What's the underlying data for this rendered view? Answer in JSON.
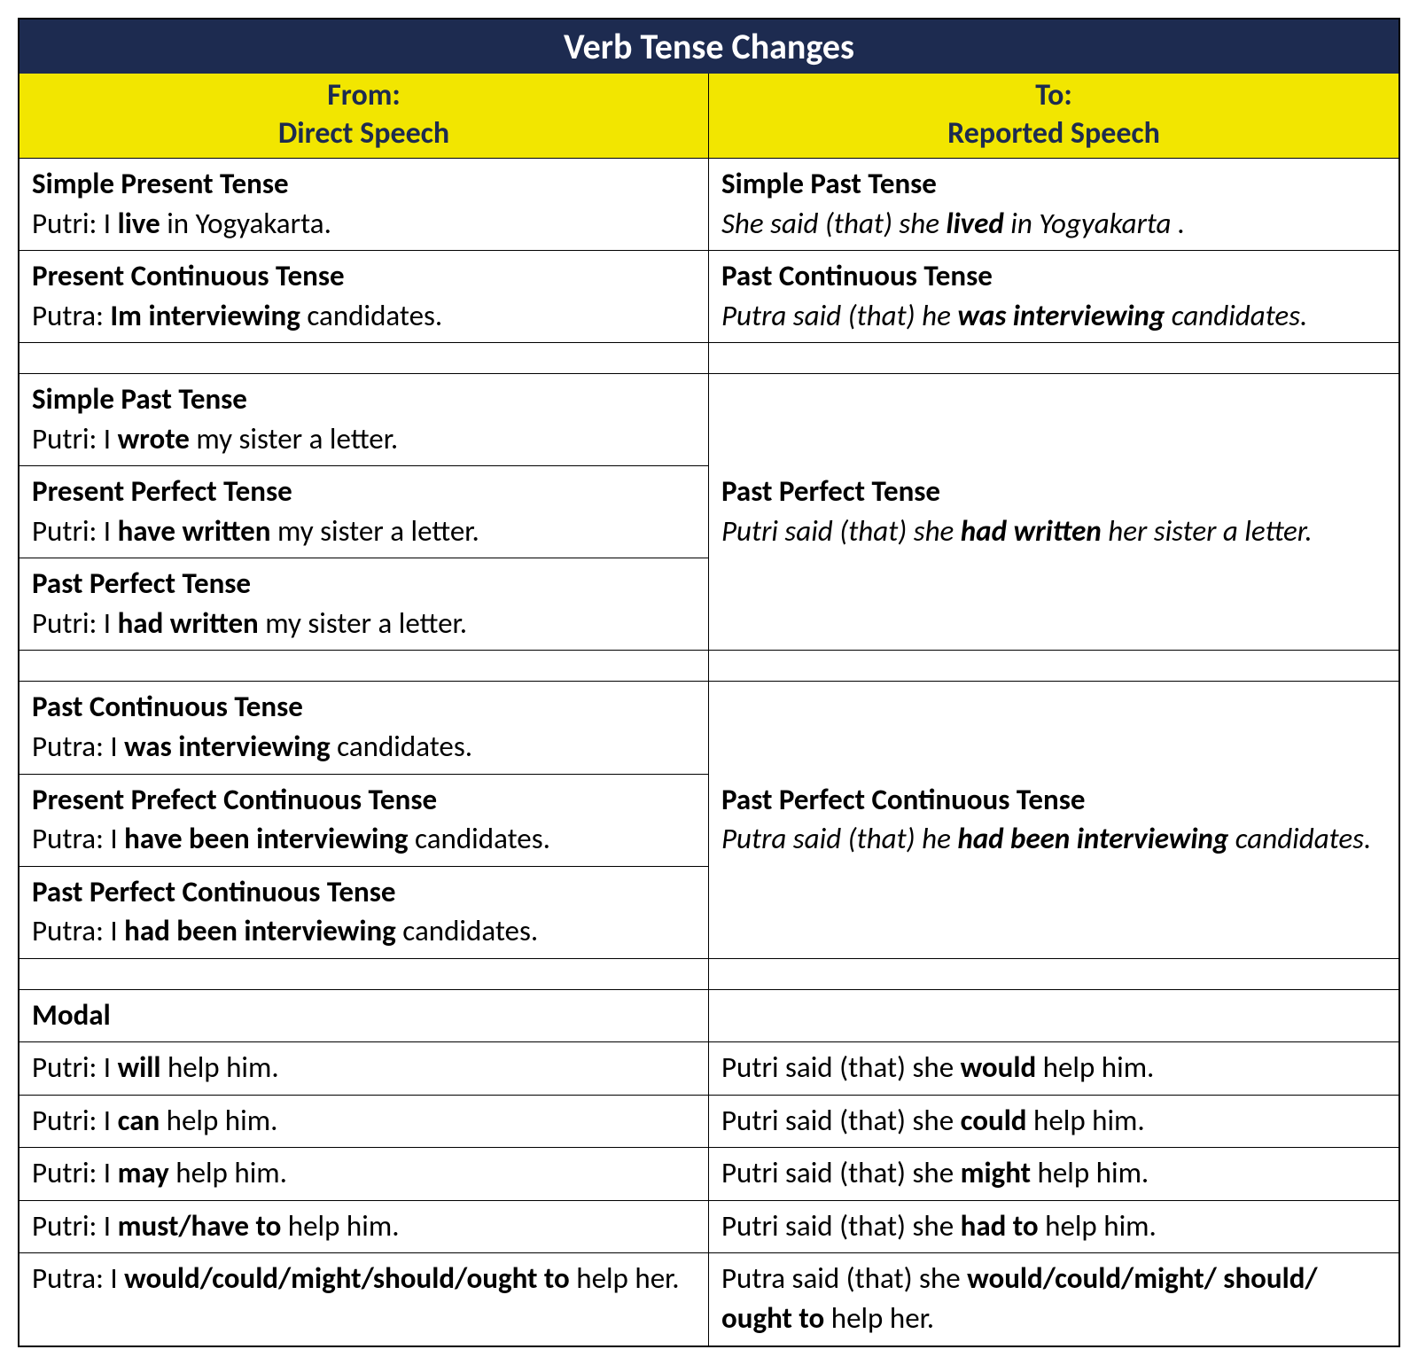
{
  "title": "Verb Tense Changes",
  "header": {
    "from_label": "From:",
    "from_sub": "Direct Speech",
    "to_label": "To:",
    "to_sub": "Reported Speech"
  },
  "colors": {
    "title_bg": "#1d2b50",
    "title_fg": "#ffffff",
    "header_bg": "#f2e600",
    "header_fg": "#1d2b50",
    "border": "#000000",
    "text": "#000000",
    "bg": "#ffffff"
  },
  "row1": {
    "left_tense": "Simple Present Tense",
    "left_prefix": "Putri: I  ",
    "left_bold": "live",
    "left_suffix": " in Yogyakarta.",
    "right_tense": "Simple Past Tense",
    "right_prefix": "She said (that) she ",
    "right_bold": "lived",
    "right_suffix": " in Yogyakarta .",
    "right_italic": true
  },
  "row2": {
    "left_tense": "Present Continuous Tense",
    "left_prefix": "Putra:   ",
    "left_bold": "Im interviewing",
    "left_suffix": "  candidates.",
    "right_tense": "Past Continuous Tense",
    "right_prefix": "Putra said (that) he ",
    "right_bold": "was interviewing",
    "right_suffix": " candidates.",
    "right_italic": true
  },
  "group1": {
    "left_rows": [
      {
        "tense": "Simple Past Tense",
        "prefix": "Putri: I   ",
        "bold": "wrote",
        "suffix": " my sister a letter."
      },
      {
        "tense": "Present Perfect Tense",
        "prefix": "Putri: I   ",
        "bold": "have written",
        "suffix": " my sister a letter."
      },
      {
        "tense": "Past Perfect Tense",
        "prefix": "Putri: I   ",
        "bold": "had written",
        "suffix": " my sister a letter."
      }
    ],
    "right_tense": "Past Perfect Tense",
    "right_prefix": "Putri said (that) she ",
    "right_bold": "had written",
    "right_suffix": " her sister a letter.",
    "right_italic": true
  },
  "group2": {
    "left_rows": [
      {
        "tense": "Past Continuous Tense",
        "prefix": "Putra: I   ",
        "bold": "was interviewing",
        "suffix": " candidates."
      },
      {
        "tense": "Present Prefect Continuous Tense",
        "prefix": "Putra: I   ",
        "bold": "have been interviewing",
        "suffix": " candidates."
      },
      {
        "tense": "Past Perfect Continuous Tense",
        "prefix": "Putra: I   ",
        "bold": "had been interviewing",
        "suffix": " candidates."
      }
    ],
    "right_tense": "Past Perfect Continuous Tense",
    "right_prefix": "Putra said (that) he ",
    "right_bold": "had been interviewing",
    "right_suffix": " candidates.",
    "right_italic": true
  },
  "modal_header": "Modal",
  "modal_rows": [
    {
      "left_prefix": "Putri: I   ",
      "left_bold": "will",
      "left_suffix": " help him.",
      "right_prefix": "Putri said (that) she ",
      "right_bold": "would",
      "right_suffix": " help him."
    },
    {
      "left_prefix": "Putri: I   ",
      "left_bold": "can",
      "left_suffix": " help him.",
      "right_prefix": "Putri said (that) she ",
      "right_bold": "could",
      "right_suffix": " help him."
    },
    {
      "left_prefix": "Putri: I   ",
      "left_bold": "may",
      "left_suffix": " help him.",
      "right_prefix": "Putri said (that) she ",
      "right_bold": "might",
      "right_suffix": " help him."
    },
    {
      "left_prefix": "Putri: I   ",
      "left_bold": "must/have to",
      "left_suffix": " help him.",
      "right_prefix": "Putri said (that) she ",
      "right_bold": "had to",
      "right_suffix": " help him."
    },
    {
      "left_prefix": "Putra: I   ",
      "left_bold": "would/could/might/should/ought to",
      "left_suffix": " help her.",
      "right_prefix": "Putra said (that) she ",
      "right_bold": "would/could/might/ should/ ought to",
      "right_suffix": " help her."
    }
  ]
}
